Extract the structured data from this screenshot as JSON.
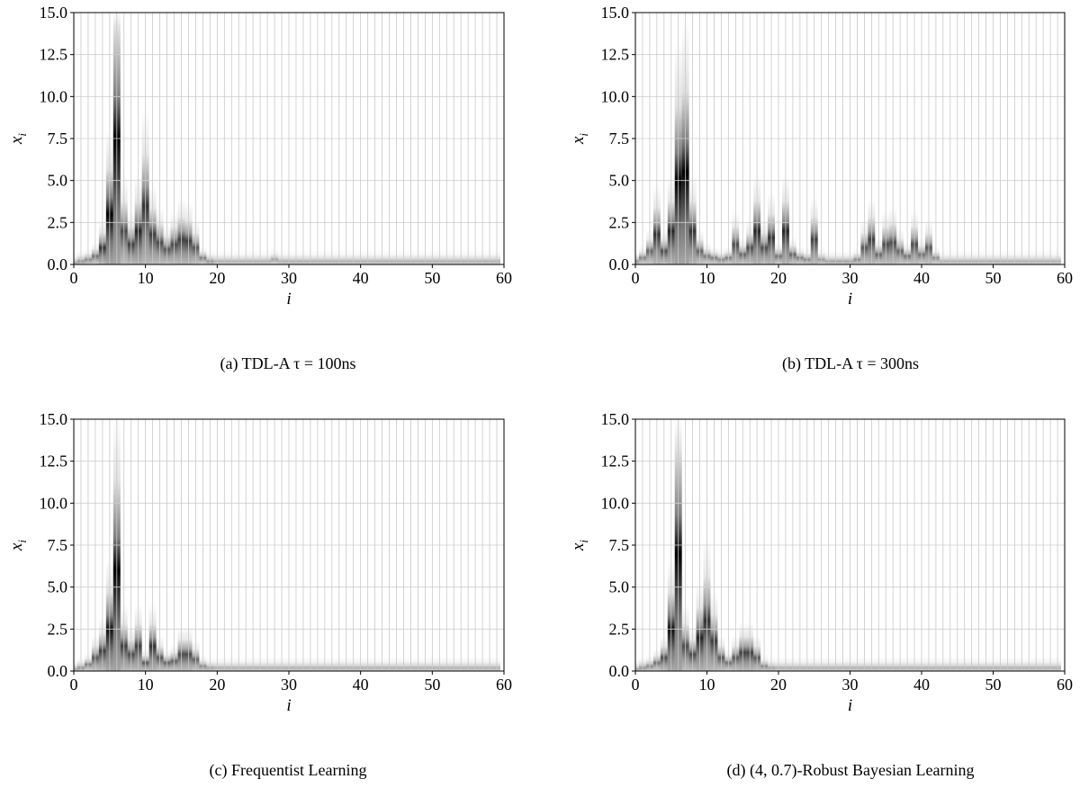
{
  "chart_data": [
    {
      "type": "heatmap",
      "panel": "a",
      "caption": "(a) TDL-A τ = 100ns",
      "xlabel": "i",
      "ylabel": "x_i",
      "xlim": [
        0,
        60
      ],
      "ylim": [
        0,
        15
      ],
      "xticks": [
        "0",
        "10",
        "20",
        "30",
        "40",
        "50",
        "60"
      ],
      "yticks": [
        "0.0",
        "2.5",
        "5.0",
        "7.5",
        "10.0",
        "12.5",
        "15.0"
      ],
      "grid": true,
      "colormap": "white-to-black (density)",
      "columns": [
        {
          "i": 0,
          "center": 0.1,
          "peak": 0.35
        },
        {
          "i": 1,
          "center": 0.2,
          "peak": 0.4
        },
        {
          "i": 2,
          "center": 0.3,
          "peak": 0.45
        },
        {
          "i": 3,
          "center": 0.5,
          "peak": 0.55
        },
        {
          "i": 4,
          "center": 1.0,
          "peak": 0.8
        },
        {
          "i": 5,
          "center": 3.0,
          "peak": 1.0
        },
        {
          "i": 6,
          "center": 7.5,
          "peak": 1.0
        },
        {
          "i": 7,
          "center": 2.0,
          "peak": 0.7
        },
        {
          "i": 8,
          "center": 1.2,
          "peak": 0.75
        },
        {
          "i": 9,
          "center": 2.0,
          "peak": 0.85
        },
        {
          "i": 10,
          "center": 3.5,
          "peak": 0.8
        },
        {
          "i": 11,
          "center": 1.8,
          "peak": 0.75
        },
        {
          "i": 12,
          "center": 1.3,
          "peak": 0.7
        },
        {
          "i": 13,
          "center": 0.9,
          "peak": 0.65
        },
        {
          "i": 14,
          "center": 1.2,
          "peak": 0.7
        },
        {
          "i": 15,
          "center": 1.5,
          "peak": 0.75
        },
        {
          "i": 16,
          "center": 1.4,
          "peak": 0.75
        },
        {
          "i": 17,
          "center": 1.0,
          "peak": 0.65
        },
        {
          "i": 18,
          "center": 0.4,
          "peak": 0.5
        },
        {
          "i": 19,
          "center": 0.2,
          "peak": 0.4
        },
        {
          "i": 20,
          "center": 0.2,
          "peak": 0.3
        },
        {
          "i": 21,
          "center": 0.2,
          "peak": 0.3
        },
        {
          "i": 22,
          "center": 0.2,
          "peak": 0.3
        },
        {
          "i": 23,
          "center": 0.2,
          "peak": 0.3
        },
        {
          "i": 24,
          "center": 0.2,
          "peak": 0.3
        },
        {
          "i": 25,
          "center": 0.2,
          "peak": 0.3
        },
        {
          "i": 26,
          "center": 0.2,
          "peak": 0.3
        },
        {
          "i": 27,
          "center": 0.2,
          "peak": 0.3
        },
        {
          "i": 28,
          "center": 0.3,
          "peak": 0.35
        },
        {
          "i": 29,
          "center": 0.2,
          "peak": 0.3
        },
        {
          "i": 30,
          "center": 0.2,
          "peak": 0.3
        }
      ],
      "baseline": {
        "from": 31,
        "to": 60,
        "center": 0.2,
        "peak": 0.3
      }
    },
    {
      "type": "heatmap",
      "panel": "b",
      "caption": "(b) TDL-A τ = 300ns",
      "xlabel": "i",
      "ylabel": "x_i",
      "xlim": [
        0,
        60
      ],
      "ylim": [
        0,
        15
      ],
      "xticks": [
        "0",
        "10",
        "20",
        "30",
        "40",
        "50",
        "60"
      ],
      "yticks": [
        "0.0",
        "2.5",
        "5.0",
        "7.5",
        "10.0",
        "12.5",
        "15.0"
      ],
      "grid": true,
      "colormap": "white-to-black (density)",
      "columns": [
        {
          "i": 0,
          "center": 0.2,
          "peak": 0.4
        },
        {
          "i": 1,
          "center": 0.4,
          "peak": 0.5
        },
        {
          "i": 2,
          "center": 0.8,
          "peak": 0.6
        },
        {
          "i": 3,
          "center": 1.8,
          "peak": 0.8
        },
        {
          "i": 4,
          "center": 0.8,
          "peak": 0.7
        },
        {
          "i": 5,
          "center": 2.0,
          "peak": 0.85
        },
        {
          "i": 6,
          "center": 5.0,
          "peak": 1.0
        },
        {
          "i": 7,
          "center": 5.5,
          "peak": 1.0
        },
        {
          "i": 8,
          "center": 2.0,
          "peak": 0.8
        },
        {
          "i": 9,
          "center": 0.8,
          "peak": 0.6
        },
        {
          "i": 10,
          "center": 0.5,
          "peak": 0.5
        },
        {
          "i": 11,
          "center": 0.4,
          "peak": 0.5
        },
        {
          "i": 12,
          "center": 0.3,
          "peak": 0.45
        },
        {
          "i": 13,
          "center": 0.4,
          "peak": 0.5
        },
        {
          "i": 14,
          "center": 1.2,
          "peak": 0.7
        },
        {
          "i": 15,
          "center": 0.6,
          "peak": 0.6
        },
        {
          "i": 16,
          "center": 1.0,
          "peak": 0.7
        },
        {
          "i": 17,
          "center": 2.0,
          "peak": 0.85
        },
        {
          "i": 18,
          "center": 1.0,
          "peak": 0.7
        },
        {
          "i": 19,
          "center": 1.6,
          "peak": 0.8
        },
        {
          "i": 20,
          "center": 0.5,
          "peak": 0.55
        },
        {
          "i": 21,
          "center": 2.0,
          "peak": 0.85
        },
        {
          "i": 22,
          "center": 0.6,
          "peak": 0.6
        },
        {
          "i": 23,
          "center": 0.4,
          "peak": 0.5
        },
        {
          "i": 24,
          "center": 0.3,
          "peak": 0.45
        },
        {
          "i": 25,
          "center": 1.5,
          "peak": 0.75
        },
        {
          "i": 26,
          "center": 0.3,
          "peak": 0.4
        },
        {
          "i": 27,
          "center": 0.2,
          "peak": 0.35
        },
        {
          "i": 28,
          "center": 0.2,
          "peak": 0.35
        },
        {
          "i": 29,
          "center": 0.2,
          "peak": 0.35
        },
        {
          "i": 30,
          "center": 0.2,
          "peak": 0.35
        },
        {
          "i": 31,
          "center": 0.3,
          "peak": 0.45
        },
        {
          "i": 32,
          "center": 1.0,
          "peak": 0.65
        },
        {
          "i": 33,
          "center": 1.5,
          "peak": 0.75
        },
        {
          "i": 34,
          "center": 0.6,
          "peak": 0.6
        },
        {
          "i": 35,
          "center": 1.2,
          "peak": 0.7
        },
        {
          "i": 36,
          "center": 1.3,
          "peak": 0.7
        },
        {
          "i": 37,
          "center": 0.8,
          "peak": 0.6
        },
        {
          "i": 38,
          "center": 0.5,
          "peak": 0.55
        },
        {
          "i": 39,
          "center": 1.2,
          "peak": 0.7
        },
        {
          "i": 40,
          "center": 0.6,
          "peak": 0.55
        },
        {
          "i": 41,
          "center": 1.0,
          "peak": 0.65
        },
        {
          "i": 42,
          "center": 0.4,
          "peak": 0.45
        }
      ],
      "baseline": {
        "from": 43,
        "to": 60,
        "center": 0.2,
        "peak": 0.3
      }
    },
    {
      "type": "heatmap",
      "panel": "c",
      "caption": "(c) Frequentist Learning",
      "xlabel": "i",
      "ylabel": "x_i",
      "xlim": [
        0,
        60
      ],
      "ylim": [
        0,
        15
      ],
      "xticks": [
        "0",
        "10",
        "20",
        "30",
        "40",
        "50",
        "60"
      ],
      "yticks": [
        "0.0",
        "2.5",
        "5.0",
        "7.5",
        "10.0",
        "12.5",
        "15.0"
      ],
      "grid": true,
      "colormap": "white-to-black (density)",
      "columns": [
        {
          "i": 0,
          "center": 0.1,
          "peak": 0.35
        },
        {
          "i": 1,
          "center": 0.2,
          "peak": 0.4
        },
        {
          "i": 2,
          "center": 0.4,
          "peak": 0.5
        },
        {
          "i": 3,
          "center": 0.8,
          "peak": 0.65
        },
        {
          "i": 4,
          "center": 1.2,
          "peak": 0.75
        },
        {
          "i": 5,
          "center": 2.5,
          "peak": 0.95
        },
        {
          "i": 6,
          "center": 6.0,
          "peak": 1.0
        },
        {
          "i": 7,
          "center": 1.5,
          "peak": 0.75
        },
        {
          "i": 8,
          "center": 1.0,
          "peak": 0.7
        },
        {
          "i": 9,
          "center": 1.5,
          "peak": 0.75
        },
        {
          "i": 10,
          "center": 0.5,
          "peak": 0.65
        },
        {
          "i": 11,
          "center": 1.5,
          "peak": 0.8
        },
        {
          "i": 12,
          "center": 0.8,
          "peak": 0.65
        },
        {
          "i": 13,
          "center": 0.5,
          "peak": 0.6
        },
        {
          "i": 14,
          "center": 0.6,
          "peak": 0.6
        },
        {
          "i": 15,
          "center": 1.0,
          "peak": 0.7
        },
        {
          "i": 16,
          "center": 1.0,
          "peak": 0.7
        },
        {
          "i": 17,
          "center": 0.7,
          "peak": 0.6
        },
        {
          "i": 18,
          "center": 0.3,
          "peak": 0.45
        },
        {
          "i": 19,
          "center": 0.2,
          "peak": 0.35
        }
      ],
      "baseline": {
        "from": 20,
        "to": 60,
        "center": 0.2,
        "peak": 0.3
      }
    },
    {
      "type": "heatmap",
      "panel": "d",
      "caption": "(d) (4, 0.7)-Robust Bayesian Learning",
      "xlabel": "i",
      "ylabel": "x_i",
      "xlim": [
        0,
        60
      ],
      "ylim": [
        0,
        15
      ],
      "xticks": [
        "0",
        "10",
        "20",
        "30",
        "40",
        "50",
        "60"
      ],
      "yticks": [
        "0.0",
        "2.5",
        "5.0",
        "7.5",
        "10.0",
        "12.5",
        "15.0"
      ],
      "grid": true,
      "colormap": "white-to-black (density)",
      "columns": [
        {
          "i": 0,
          "center": 0.1,
          "peak": 0.35
        },
        {
          "i": 1,
          "center": 0.2,
          "peak": 0.4
        },
        {
          "i": 2,
          "center": 0.3,
          "peak": 0.45
        },
        {
          "i": 3,
          "center": 0.5,
          "peak": 0.55
        },
        {
          "i": 4,
          "center": 0.8,
          "peak": 0.7
        },
        {
          "i": 5,
          "center": 2.5,
          "peak": 0.95
        },
        {
          "i": 6,
          "center": 7.0,
          "peak": 1.0
        },
        {
          "i": 7,
          "center": 1.5,
          "peak": 0.7
        },
        {
          "i": 8,
          "center": 1.0,
          "peak": 0.7
        },
        {
          "i": 9,
          "center": 2.0,
          "peak": 0.85
        },
        {
          "i": 10,
          "center": 3.0,
          "peak": 0.8
        },
        {
          "i": 11,
          "center": 1.8,
          "peak": 0.75
        },
        {
          "i": 12,
          "center": 0.8,
          "peak": 0.65
        },
        {
          "i": 13,
          "center": 0.5,
          "peak": 0.55
        },
        {
          "i": 14,
          "center": 0.8,
          "peak": 0.65
        },
        {
          "i": 15,
          "center": 1.1,
          "peak": 0.75
        },
        {
          "i": 16,
          "center": 1.1,
          "peak": 0.75
        },
        {
          "i": 17,
          "center": 0.8,
          "peak": 0.65
        },
        {
          "i": 18,
          "center": 0.3,
          "peak": 0.45
        },
        {
          "i": 19,
          "center": 0.2,
          "peak": 0.35
        }
      ],
      "baseline": {
        "from": 20,
        "to": 60,
        "center": 0.2,
        "peak": 0.3
      }
    }
  ]
}
